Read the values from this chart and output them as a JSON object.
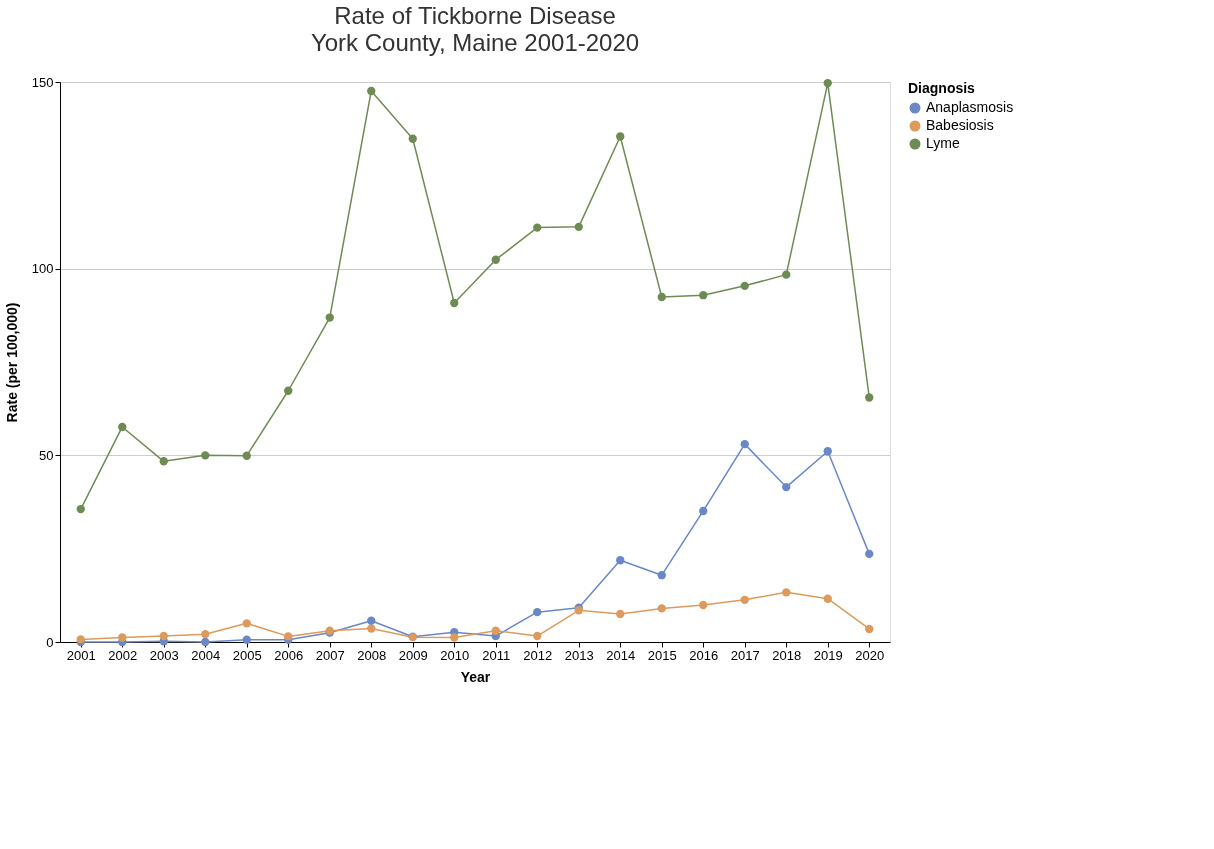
{
  "chart_data": {
    "type": "line",
    "title": "Rate of Tickborne Disease",
    "subtitle": "York County, Maine 2001-2020",
    "xlabel": "Year",
    "ylabel": "Rate (per 100,000)",
    "legend_title": "Diagnosis",
    "categories": [
      "2001",
      "2002",
      "2003",
      "2004",
      "2005",
      "2006",
      "2007",
      "2008",
      "2009",
      "2010",
      "2011",
      "2012",
      "2013",
      "2014",
      "2015",
      "2016",
      "2017",
      "2018",
      "2019",
      "2020"
    ],
    "series": [
      {
        "name": "Anaplasmosis",
        "color": "#6a87c6",
        "values": [
          0,
          0,
          0.2,
          0,
          0.6,
          0.6,
          2.5,
          5.7,
          1.4,
          2.6,
          1.6,
          8.0,
          9.2,
          21.9,
          17.9,
          35.1,
          53.0,
          41.5,
          51.1,
          23.6
        ]
      },
      {
        "name": "Babesiosis",
        "color": "#dc9a5c",
        "values": [
          0.7,
          1.2,
          1.6,
          2.1,
          5.0,
          1.5,
          3.0,
          3.6,
          1.3,
          1.2,
          3.0,
          1.6,
          8.5,
          7.5,
          9.0,
          9.9,
          11.3,
          13.3,
          11.6,
          3.5
        ]
      },
      {
        "name": "Lyme",
        "color": "#6f8b55",
        "values": [
          35.6,
          57.6,
          48.4,
          50.0,
          49.9,
          67.3,
          86.9,
          147.6,
          134.8,
          90.8,
          102.4,
          111.0,
          111.2,
          135.4,
          92.4,
          92.9,
          95.4,
          98.4,
          149.7,
          65.5
        ]
      }
    ],
    "ylim": [
      0,
      150
    ],
    "yticks": [
      0,
      50,
      100,
      150
    ],
    "grid": "y",
    "legend": "top right",
    "marker": "circle",
    "line_style": "solid"
  }
}
